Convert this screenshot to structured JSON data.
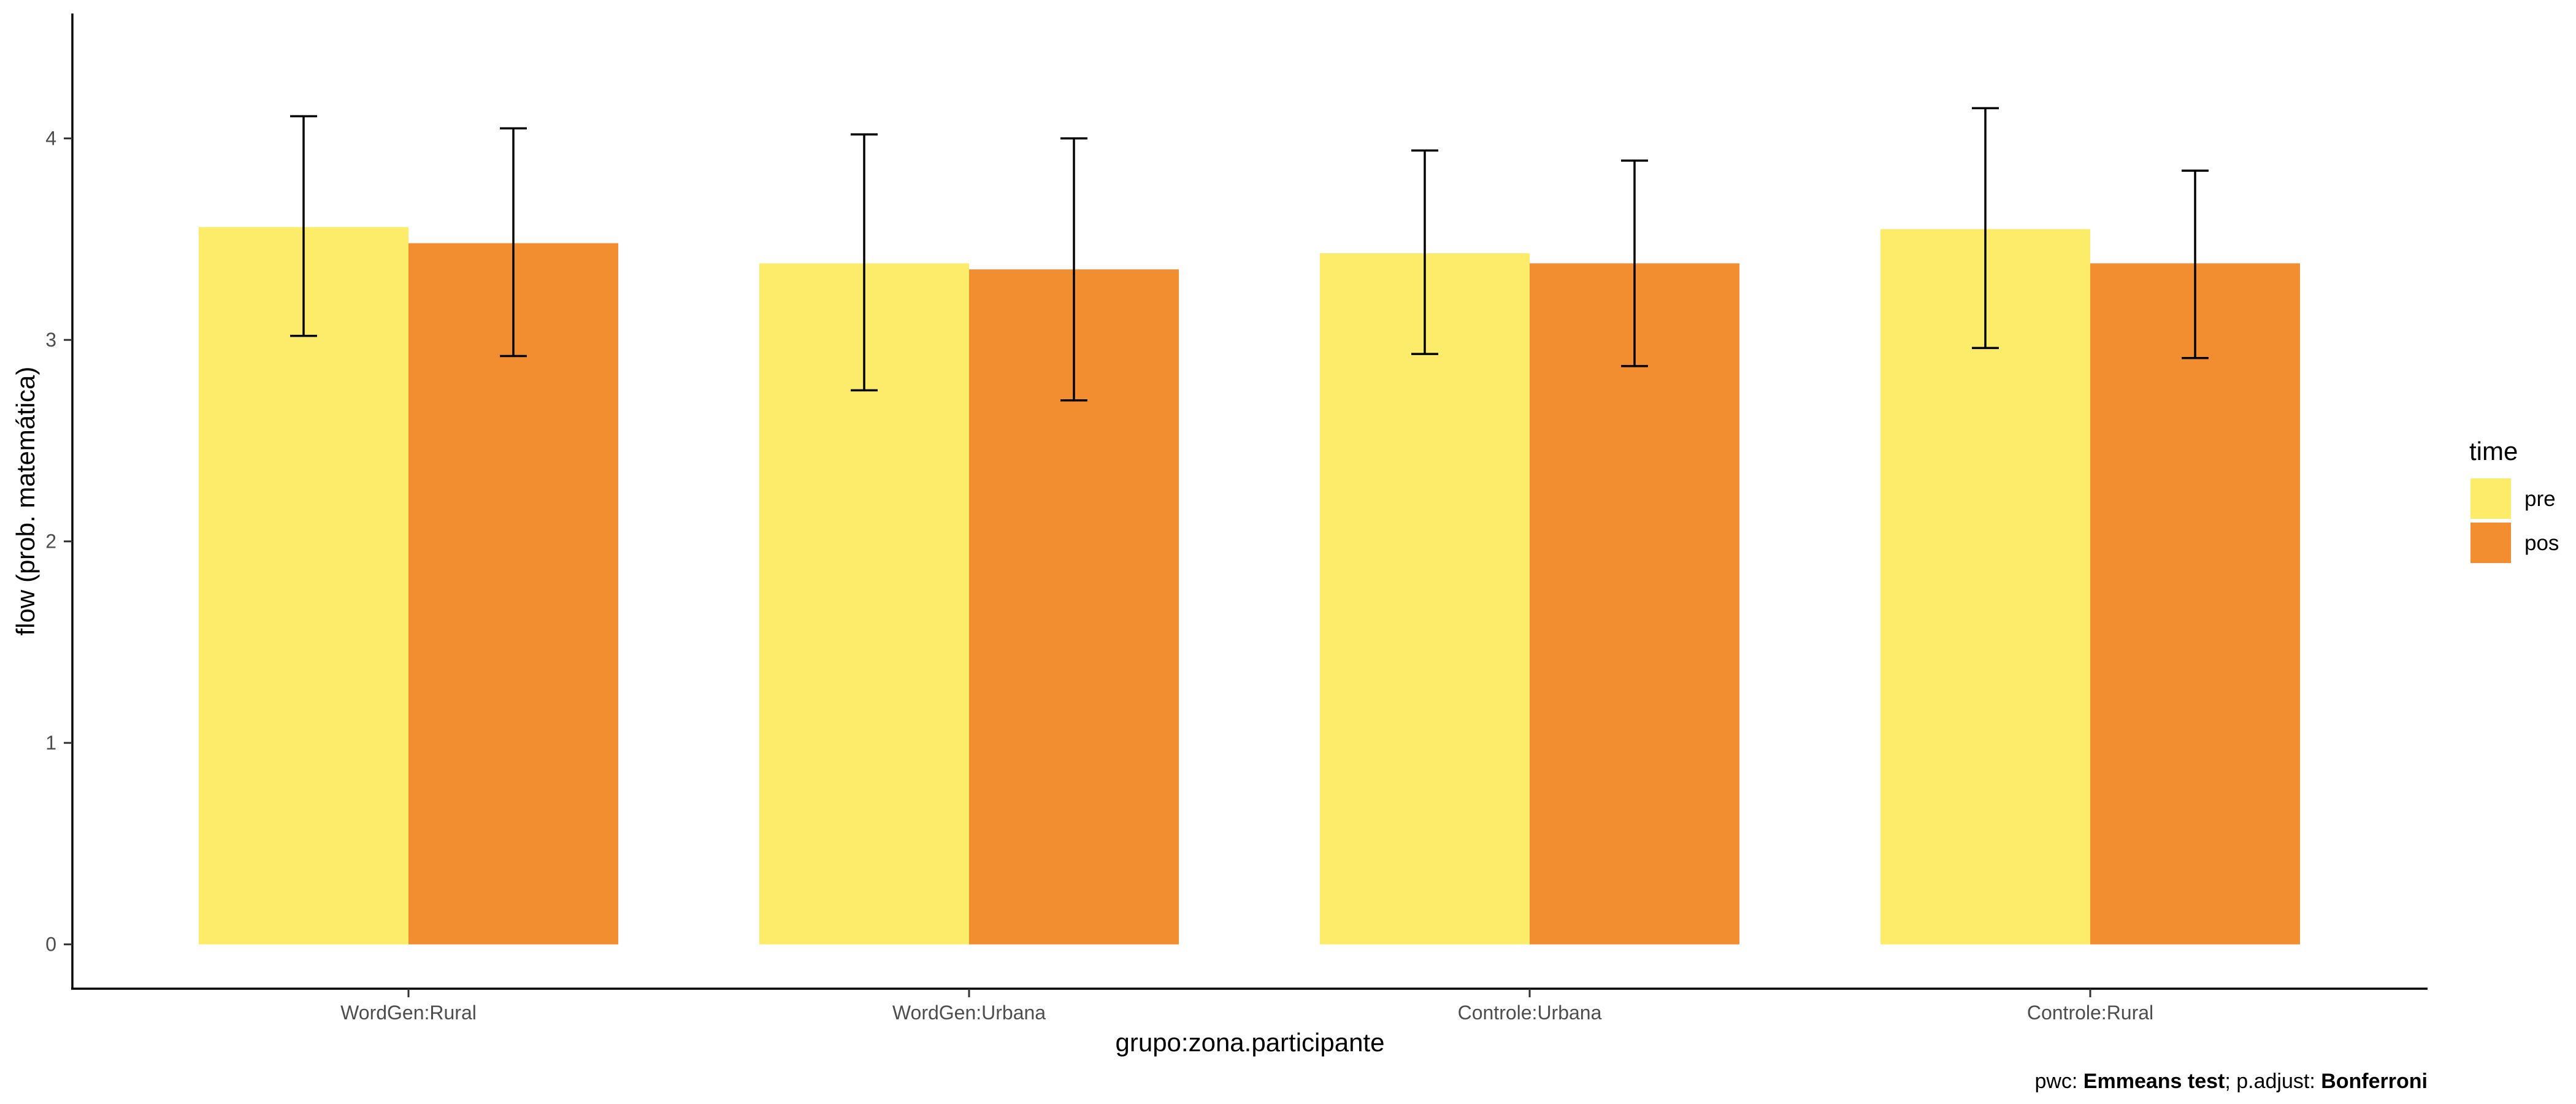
{
  "chart_data": {
    "type": "bar",
    "xlabel": "grupo:zona.participante",
    "ylabel": "flow (prob. matemática)",
    "categories": [
      "WordGen:Rural",
      "WordGen:Urbana",
      "Controle:Urbana",
      "Controle:Rural"
    ],
    "series": [
      {
        "name": "pre",
        "color": "#FDEC6A",
        "values": [
          3.56,
          3.38,
          3.43,
          3.55
        ],
        "err_low": [
          3.02,
          2.75,
          2.93,
          2.96
        ],
        "err_high": [
          4.11,
          4.02,
          3.94,
          4.15
        ]
      },
      {
        "name": "pos",
        "color": "#F28E2F",
        "values": [
          3.48,
          3.35,
          3.38,
          3.38
        ],
        "err_low": [
          2.92,
          2.7,
          2.87,
          2.91
        ],
        "err_high": [
          4.05,
          4.0,
          3.89,
          3.84
        ]
      }
    ],
    "ylim": [
      -0.22,
      4.62
    ],
    "yticks": [
      0,
      1,
      2,
      3,
      4
    ],
    "grid": false,
    "legend": {
      "title": "time",
      "position": "right"
    },
    "caption": {
      "prefix": "pwc: ",
      "test": "Emmeans test",
      "middle": "; p.adjust: ",
      "method": "Bonferroni"
    }
  }
}
